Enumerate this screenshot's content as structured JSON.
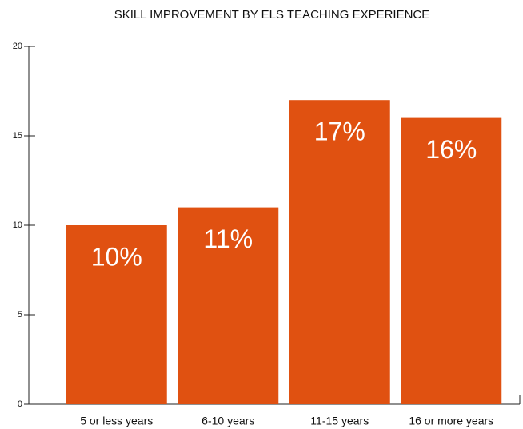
{
  "chart_data": {
    "type": "bar",
    "title": "SKILL IMPROVEMENT BY ELS TEACHING EXPERIENCE",
    "categories": [
      "5 or less years",
      "6-10 years",
      "11-15 years",
      "16 or more years"
    ],
    "values": [
      10,
      11,
      17,
      16
    ],
    "value_labels": [
      "10%",
      "11%",
      "17%",
      "16%"
    ],
    "color": "#e05111",
    "ylim": [
      0,
      20
    ],
    "yticks": [
      0,
      5,
      10,
      15,
      20
    ]
  }
}
